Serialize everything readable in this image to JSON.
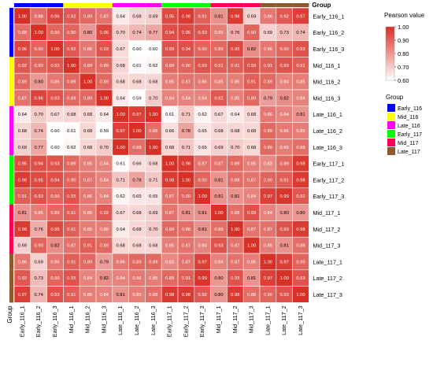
{
  "chart_data": {
    "type": "heatmap",
    "title": "",
    "group_label": "Group",
    "rows": [
      "Early_116_1",
      "Early_116_2",
      "Early_116_3",
      "Mid_116_1",
      "Mid_116_2",
      "Mid_116_3",
      "Late_116_1",
      "Late_116_2",
      "Late_116_3",
      "Early_117_1",
      "Early_117_2",
      "Early_117_3",
      "Mid_117_1",
      "Mid_117_2",
      "Mid_117_3",
      "Late_117_1",
      "Late_117_2",
      "Late_117_3"
    ],
    "columns": [
      "Early_116_1",
      "Early_116_2",
      "Early_116_3",
      "Mid_116_1",
      "Mid_116_2",
      "Mid_116_3",
      "Late_116_1",
      "Late_116_2",
      "Late_116_3",
      "Early_117_1",
      "Early_117_2",
      "Early_117_3",
      "Mid_117_1",
      "Mid_117_2",
      "Mid_117_3",
      "Late_117_1",
      "Late_117_2",
      "Late_117_3"
    ],
    "row_groups": [
      "Early_116",
      "Early_116",
      "Early_116",
      "Mid_116",
      "Mid_116",
      "Mid_116",
      "Late_116",
      "Late_116",
      "Late_116",
      "Early_117",
      "Early_117",
      "Early_117",
      "Mid_117",
      "Mid_117",
      "Mid_117",
      "Late_117",
      "Late_117",
      "Late_117"
    ],
    "col_groups": [
      "Early_116",
      "Early_116",
      "Early_116",
      "Mid_116",
      "Mid_116",
      "Mid_116",
      "Late_116",
      "Late_116",
      "Late_116",
      "Early_117",
      "Early_117",
      "Early_117",
      "Mid_117",
      "Mid_117",
      "Mid_117",
      "Late_117",
      "Late_117",
      "Late_117"
    ],
    "values": [
      [
        1.0,
        0.88,
        0.96,
        0.92,
        0.89,
        0.87,
        0.64,
        0.68,
        0.69,
        0.95,
        0.98,
        0.91,
        0.81,
        0.98,
        0.69,
        0.86,
        0.92,
        0.97
      ],
      [
        0.88,
        1.0,
        0.9,
        0.9,
        0.8,
        0.96,
        0.7,
        0.74,
        0.77,
        0.94,
        0.95,
        0.93,
        0.85,
        0.76,
        0.9,
        0.69,
        0.73,
        0.74
      ],
      [
        0.96,
        0.9,
        1.0,
        0.92,
        0.86,
        0.93,
        0.67,
        0.6,
        0.6,
        0.93,
        0.94,
        0.9,
        0.89,
        0.95,
        0.82,
        0.86,
        0.9,
        0.93
      ],
      [
        0.92,
        0.9,
        0.92,
        1.0,
        0.89,
        0.89,
        0.68,
        0.61,
        0.62,
        0.89,
        0.9,
        0.93,
        0.91,
        0.91,
        0.93,
        0.91,
        0.93,
        0.91
      ],
      [
        0.89,
        0.8,
        0.86,
        0.89,
        1.0,
        0.89,
        0.68,
        0.68,
        0.68,
        0.85,
        0.87,
        0.86,
        0.85,
        0.85,
        0.91,
        0.89,
        0.84,
        0.85
      ],
      [
        0.87,
        0.96,
        0.93,
        0.89,
        0.89,
        1.0,
        0.64,
        0.59,
        0.7,
        0.84,
        0.84,
        0.84,
        0.92,
        0.85,
        0.89,
        0.79,
        0.82,
        0.84
      ],
      [
        0.64,
        0.7,
        0.67,
        0.68,
        0.68,
        0.64,
        1.0,
        0.97,
        1.0,
        0.61,
        0.71,
        0.62,
        0.67,
        0.64,
        0.68,
        0.86,
        0.84,
        0.81
      ],
      [
        0.68,
        0.74,
        0.6,
        0.61,
        0.68,
        0.59,
        0.97,
        1.0,
        0.88,
        0.66,
        0.78,
        0.65,
        0.68,
        0.68,
        0.68,
        0.89,
        0.86,
        0.85
      ],
      [
        0.69,
        0.77,
        0.6,
        0.62,
        0.68,
        0.7,
        1.0,
        0.88,
        1.0,
        0.68,
        0.71,
        0.65,
        0.69,
        0.7,
        0.68,
        0.89,
        0.85,
        0.88
      ],
      [
        0.95,
        0.94,
        0.93,
        0.89,
        0.85,
        0.84,
        0.61,
        0.66,
        0.68,
        1.0,
        0.98,
        0.87,
        0.87,
        0.89,
        0.85,
        0.83,
        0.89,
        0.98
      ],
      [
        0.98,
        0.95,
        0.94,
        0.9,
        0.87,
        0.84,
        0.71,
        0.78,
        0.71,
        0.98,
        1.0,
        0.9,
        0.81,
        0.88,
        0.87,
        0.9,
        0.91,
        0.98
      ],
      [
        0.91,
        0.93,
        0.9,
        0.93,
        0.86,
        0.84,
        0.62,
        0.65,
        0.65,
        0.87,
        0.9,
        1.0,
        0.81,
        0.81,
        0.84,
        0.97,
        0.99,
        0.92
      ],
      [
        0.81,
        0.85,
        0.89,
        0.91,
        0.85,
        0.92,
        0.67,
        0.68,
        0.69,
        0.87,
        0.81,
        0.81,
        1.0,
        0.88,
        0.93,
        0.84,
        0.8,
        0.8
      ],
      [
        0.98,
        0.76,
        0.95,
        0.91,
        0.85,
        0.85,
        0.64,
        0.68,
        0.7,
        0.89,
        0.88,
        0.81,
        0.88,
        1.0,
        0.87,
        0.87,
        0.93,
        0.98
      ],
      [
        0.69,
        0.9,
        0.82,
        0.87,
        0.91,
        0.89,
        0.68,
        0.68,
        0.68,
        0.85,
        0.87,
        0.84,
        0.93,
        0.87,
        1.0,
        0.85,
        0.81,
        0.88
      ],
      [
        0.86,
        0.69,
        0.86,
        0.91,
        0.89,
        0.79,
        0.86,
        0.89,
        0.89,
        0.83,
        0.87,
        0.97,
        0.84,
        0.87,
        0.85,
        1.0,
        0.97,
        0.9
      ],
      [
        0.92,
        0.73,
        0.9,
        0.93,
        0.84,
        0.82,
        0.84,
        0.86,
        0.85,
        0.89,
        0.91,
        0.99,
        0.8,
        0.93,
        0.81,
        0.97,
        1.0,
        0.93
      ],
      [
        0.97,
        0.74,
        0.93,
        0.91,
        0.85,
        0.84,
        0.81,
        0.85,
        0.88,
        0.98,
        0.98,
        0.92,
        0.8,
        0.98,
        0.88,
        0.9,
        0.93,
        1.0
      ]
    ],
    "colorbar": {
      "title": "Pearson value",
      "min": 0.6,
      "max": 1.0,
      "ticks": [
        "1.00",
        "0.90",
        "0.80",
        "0.70",
        "0.60"
      ],
      "color_low": "#ffffff",
      "color_high": "#d73027"
    },
    "legend": {
      "title": "Group",
      "items": [
        {
          "name": "Early_116",
          "color": "#0000ff"
        },
        {
          "name": "Mid_116",
          "color": "#ffff00"
        },
        {
          "name": "Late_116",
          "color": "#ff00ff"
        },
        {
          "name": "Early_117",
          "color": "#00ff00"
        },
        {
          "name": "Mid_117",
          "color": "#ff0055"
        },
        {
          "name": "Late_117",
          "color": "#8b5a2b"
        }
      ]
    }
  }
}
